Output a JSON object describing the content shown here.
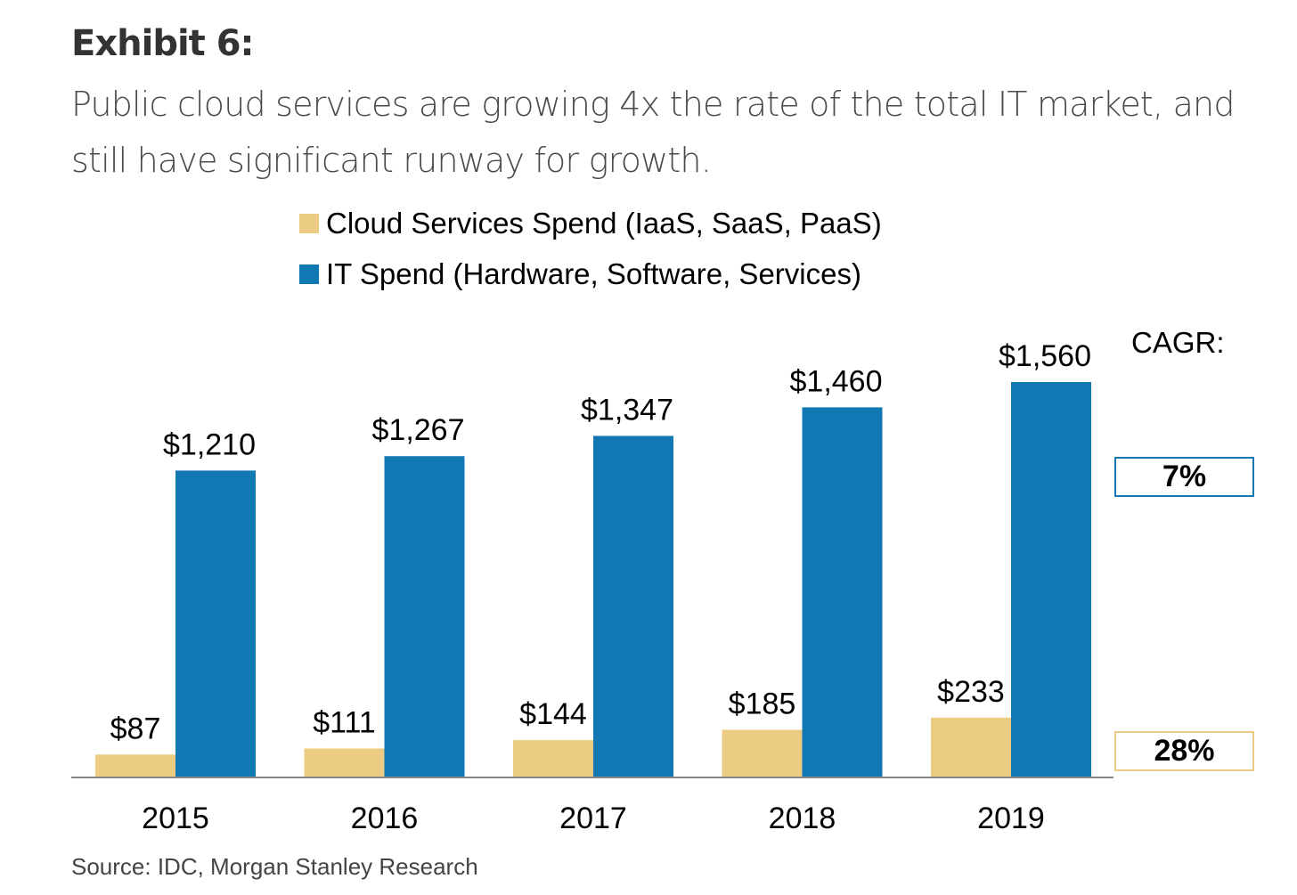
{
  "header": {
    "exhibit": "Exhibit 6:",
    "subtitle": "Public cloud services are growing 4x the rate of the total IT market, and still have significant runway for growth."
  },
  "colors": {
    "cloud": "#EBCC82",
    "it": "#1178B3",
    "axis": "#888888"
  },
  "cagr": {
    "title": "CAGR:",
    "it": "7%",
    "cloud": "28%"
  },
  "source": "Source: IDC, Morgan Stanley Research",
  "chart_data": {
    "type": "bar",
    "title": "",
    "xlabel": "",
    "ylabel": "",
    "categories": [
      "2015",
      "2016",
      "2017",
      "2018",
      "2019"
    ],
    "series": [
      {
        "name": "Cloud Services Spend (IaaS, SaaS, PaaS)",
        "values": [
          87,
          111,
          144,
          185,
          233
        ],
        "labels": [
          "$87",
          "$111",
          "$144",
          "$185",
          "$233"
        ]
      },
      {
        "name": "IT Spend (Hardware, Software, Services)",
        "values": [
          1210,
          1267,
          1347,
          1460,
          1560
        ],
        "labels": [
          "$1,210",
          "$1,267",
          "$1,347",
          "$1,460",
          "$1,560"
        ]
      }
    ],
    "ylim": [
      0,
      1560
    ],
    "grid": false,
    "legend": "top-center"
  }
}
